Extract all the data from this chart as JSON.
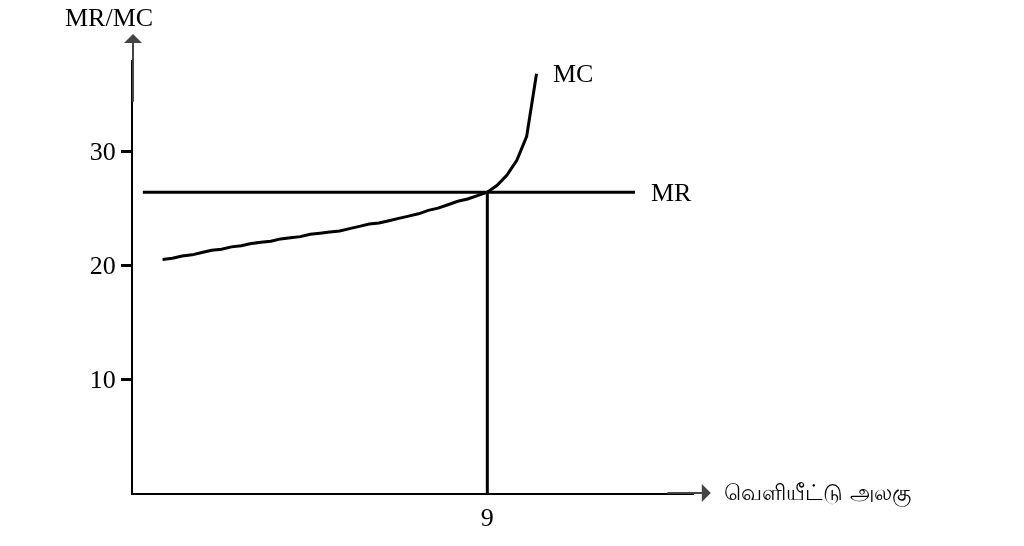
{
  "chart_data": {
    "type": "line",
    "xlabel": "வெளியீட்டு அலகு",
    "ylabel": "MR/MC",
    "categories": [
      null,
      null,
      null,
      null,
      null,
      null,
      null,
      null,
      null,
      null,
      null,
      null,
      null,
      null,
      null,
      null,
      null,
      null,
      null,
      null,
      null,
      null,
      null,
      null,
      null,
      null,
      null,
      null,
      null,
      null,
      null,
      null,
      null,
      null,
      null,
      null,
      "9",
      null,
      null,
      null,
      null,
      null,
      null,
      null,
      null,
      null,
      null,
      null,
      null,
      null,
      null,
      null,
      null,
      null,
      null,
      null,
      null,
      null
    ],
    "ylim": [
      0,
      38
    ],
    "yticks": [
      10,
      20,
      30
    ],
    "series": [
      {
        "name": "MC",
        "color": "#000000",
        "values": [
          null,
          null,
          null,
          20.5,
          20.6,
          20.8,
          20.9,
          21.1,
          21.3,
          21.4,
          21.6,
          21.7,
          21.9,
          22.0,
          22.1,
          22.3,
          22.4,
          22.5,
          22.7,
          22.8,
          22.9,
          23.0,
          23.2,
          23.4,
          23.6,
          23.7,
          23.9,
          24.1,
          24.3,
          24.5,
          24.8,
          25.0,
          25.3,
          25.6,
          25.8,
          26.1,
          26.4,
          27.0,
          27.9,
          29.2,
          31.3,
          36.8,
          null,
          null,
          null,
          null,
          null,
          null,
          null,
          null,
          null,
          null,
          null,
          null,
          null,
          null,
          null,
          null
        ]
      },
      {
        "name": "MR",
        "color": "#000000",
        "values": [
          null,
          26.4,
          26.4,
          26.4,
          26.4,
          26.4,
          26.4,
          26.4,
          26.4,
          26.4,
          26.4,
          26.4,
          26.4,
          26.4,
          26.4,
          26.4,
          26.4,
          26.4,
          26.4,
          26.4,
          26.4,
          26.4,
          26.4,
          26.4,
          26.4,
          26.4,
          26.4,
          26.4,
          26.4,
          26.4,
          26.4,
          26.4,
          26.4,
          26.4,
          26.4,
          26.4,
          26.4,
          26.4,
          26.4,
          26.4,
          26.4,
          26.4,
          26.4,
          26.4,
          26.4,
          26.4,
          26.4,
          26.4,
          26.4,
          26.4,
          26.4,
          26.4,
          null,
          null,
          null,
          null,
          null,
          null
        ]
      }
    ],
    "ref_lines": [
      {
        "axis": "x",
        "value": "9",
        "color": "#000000"
      }
    ],
    "grid": false,
    "legend": false,
    "marker": "none",
    "line_style": "solid"
  }
}
